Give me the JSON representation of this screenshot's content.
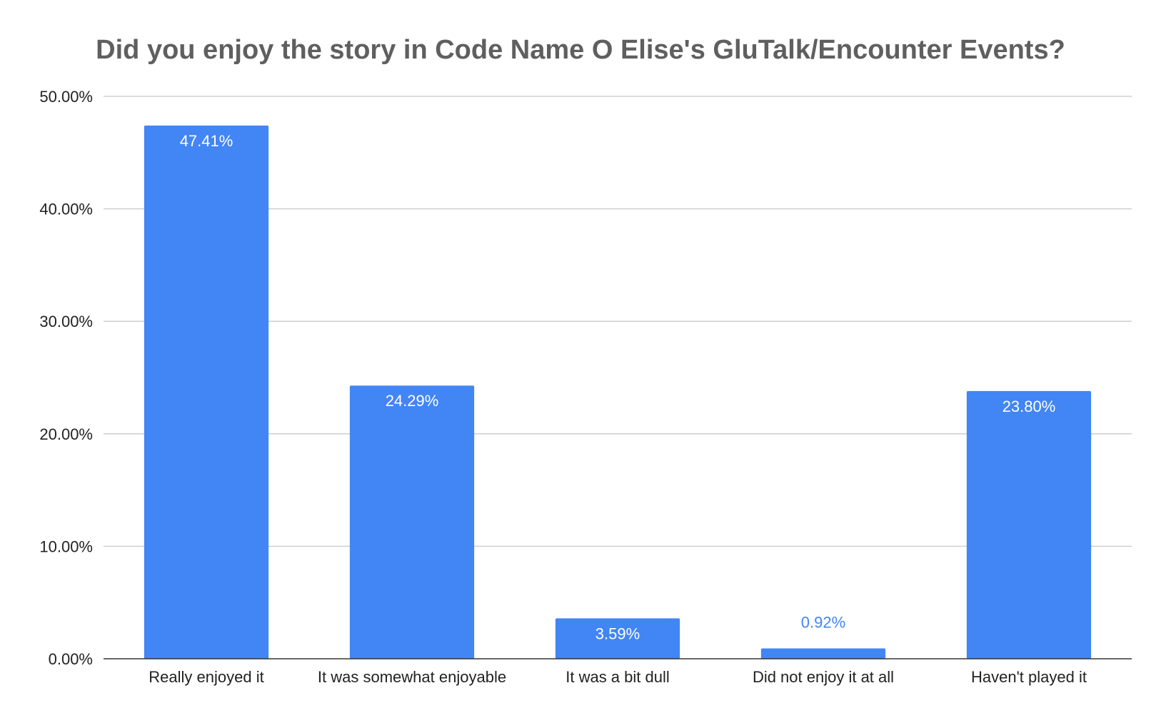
{
  "chart_data": {
    "type": "bar",
    "title": "Did you enjoy the story in Code Name O Elise's GluTalk/Encounter Events?",
    "xlabel": "",
    "ylabel": "",
    "categories": [
      "Really enjoyed it",
      "It was somewhat enjoyable",
      "It was a bit dull",
      "Did not enjoy it at all",
      "Haven't played it"
    ],
    "values": [
      47.41,
      24.29,
      3.59,
      0.92,
      23.8
    ],
    "data_labels": [
      "47.41%",
      "24.29%",
      "3.59%",
      "0.92%",
      "23.80%"
    ],
    "ylim": [
      0,
      50
    ],
    "yticks": [
      0,
      10,
      20,
      30,
      40,
      50
    ],
    "ytick_labels": [
      "0.00%",
      "10.00%",
      "20.00%",
      "30.00%",
      "40.00%",
      "50.00%"
    ],
    "grid": true,
    "legend": "none",
    "colors": {
      "bar": "#4285f4",
      "label_inside": "#ffffff",
      "label_outside": "#4285f4",
      "title": "#5f5f5f"
    }
  }
}
